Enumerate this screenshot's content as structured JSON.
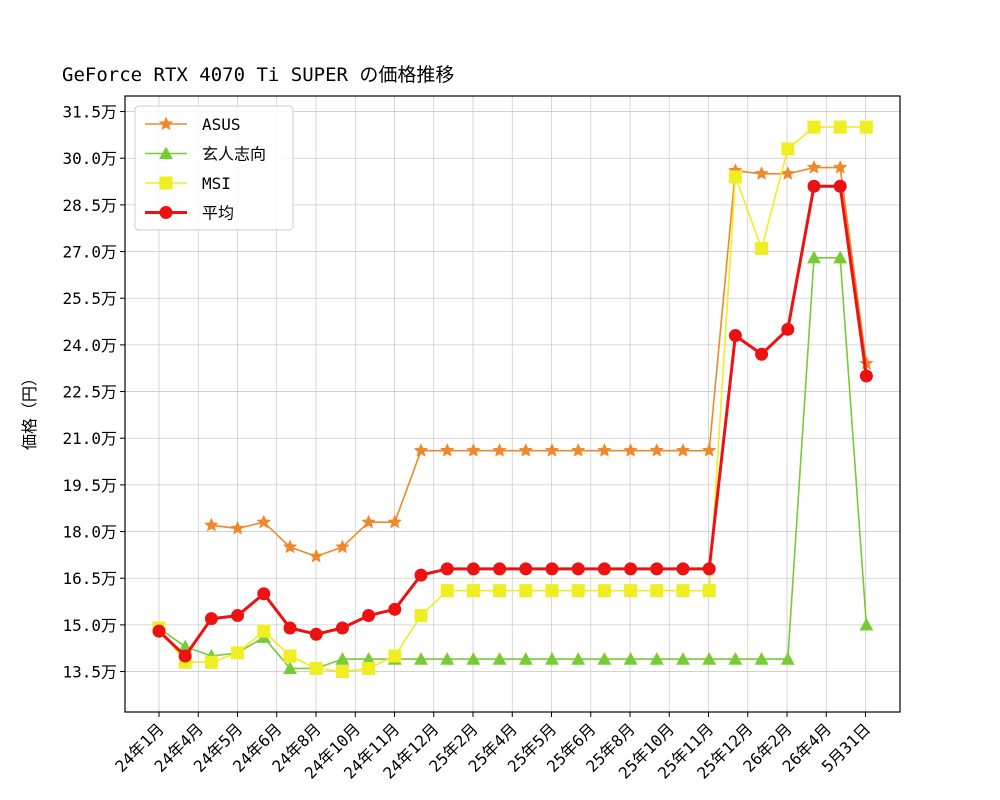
{
  "chart_data": {
    "type": "line",
    "title": "GeForce RTX 4070 Ti SUPER の価格推移",
    "xlabel": "",
    "ylabel": "価格（円）",
    "x_tick_labels": [
      "24年1月",
      "24年4月",
      "24年5月",
      "24年6月",
      "24年8月",
      "24年10月",
      "24年11月",
      "24年12月",
      "25年2月",
      "25年4月",
      "25年5月",
      "25年6月",
      "25年8月",
      "25年10月",
      "25年11月",
      "25年12月",
      "26年2月",
      "26年4月",
      "5月31日"
    ],
    "y_ticks": [
      135000,
      150000,
      165000,
      180000,
      195000,
      210000,
      225000,
      240000,
      255000,
      270000,
      285000,
      300000,
      315000
    ],
    "y_tick_labels": [
      "13.5万",
      "15.0万",
      "16.5万",
      "18.0万",
      "19.5万",
      "21.0万",
      "22.5万",
      "24.0万",
      "25.5万",
      "27.0万",
      "28.5万",
      "30.0万",
      "31.5万"
    ],
    "ylim": [
      122000,
      320000
    ],
    "grid": true,
    "legend_position": "upper-left",
    "n_points": 28,
    "series": [
      {
        "name": "ASUS",
        "color": "#f0882a",
        "marker": "star",
        "values": [
          null,
          null,
          182000,
          181000,
          183000,
          175000,
          172000,
          175000,
          183000,
          183000,
          206000,
          206000,
          206000,
          206000,
          206000,
          206000,
          206000,
          206000,
          206000,
          206000,
          206000,
          206000,
          296000,
          295000,
          295000,
          297000,
          297000,
          234000
        ]
      },
      {
        "name": "玄人志向",
        "color": "#77cc33",
        "marker": "triangle",
        "values": [
          149000,
          143000,
          140000,
          141000,
          146000,
          136000,
          136000,
          139000,
          139000,
          139000,
          139000,
          139000,
          139000,
          139000,
          139000,
          139000,
          139000,
          139000,
          139000,
          139000,
          139000,
          139000,
          139000,
          139000,
          139000,
          268000,
          268000,
          150000
        ]
      },
      {
        "name": "MSI",
        "color": "#eeee22",
        "marker": "square",
        "values": [
          149000,
          138000,
          138000,
          141000,
          148000,
          140000,
          136000,
          135000,
          136000,
          140000,
          153000,
          161000,
          161000,
          161000,
          161000,
          161000,
          161000,
          161000,
          161000,
          161000,
          161000,
          161000,
          294000,
          271000,
          303000,
          310000,
          310000,
          310000
        ]
      },
      {
        "name": "平均",
        "color": "#ee1111",
        "marker": "circle",
        "values": [
          148000,
          140000,
          152000,
          153000,
          160000,
          149000,
          147000,
          149000,
          153000,
          155000,
          166000,
          168000,
          168000,
          168000,
          168000,
          168000,
          168000,
          168000,
          168000,
          168000,
          168000,
          168000,
          243000,
          237000,
          245000,
          291000,
          291000,
          230000
        ]
      }
    ]
  }
}
